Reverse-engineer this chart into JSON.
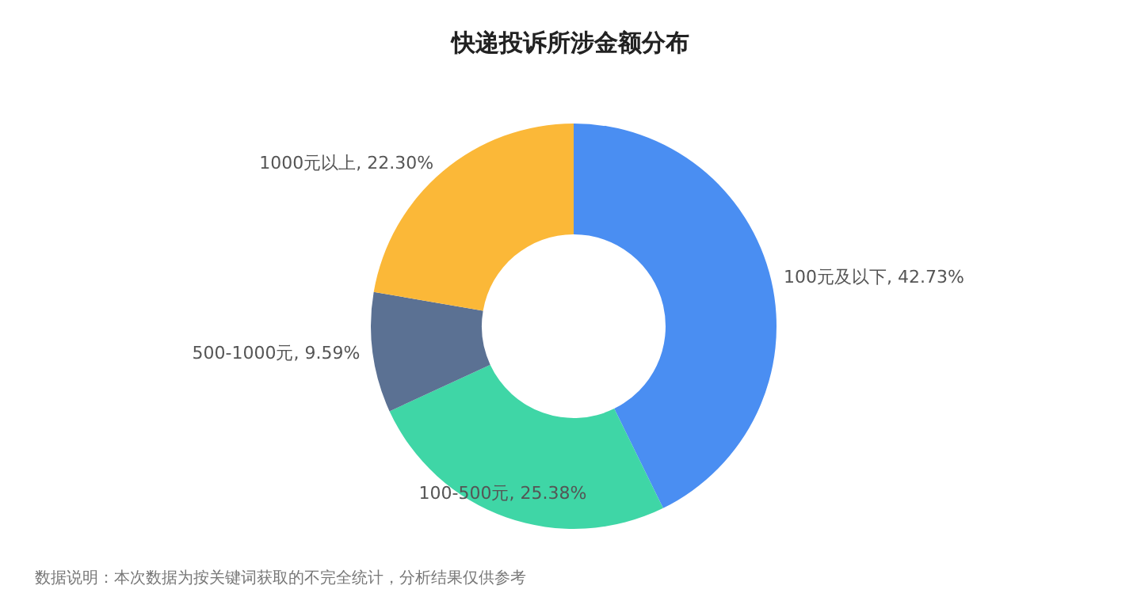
{
  "chart_data": {
    "type": "donut",
    "title": "快递投诉所涉金额分布",
    "categories": [
      "100元及以下",
      "100-500元",
      "500-1000元",
      "1000元以上"
    ],
    "values": [
      42.73,
      25.38,
      9.59,
      22.3
    ],
    "colors": [
      "#4a8ef2",
      "#3fd6a6",
      "#5b7193",
      "#fbb838"
    ],
    "value_labels": [
      ", 42.73%",
      ", 25.38%",
      ", 9.59%",
      ", 22.30%"
    ],
    "annotations": [
      "数据说明：本次数据为按关键词获取的不完全统计，分析结果仅供参考"
    ]
  }
}
